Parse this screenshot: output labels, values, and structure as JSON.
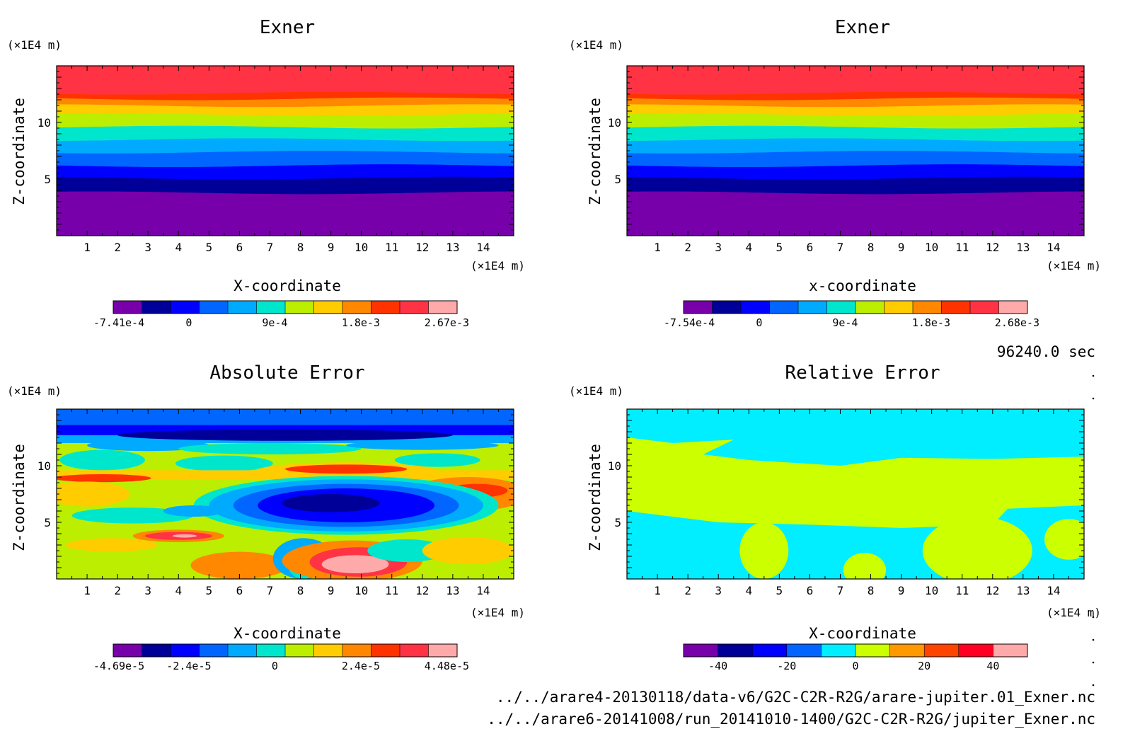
{
  "time_label": "96240.0 sec",
  "files": [
    "../../arare4-20130118/data-v6/G2C-C2R-R2G/arare-jupiter.01_Exner.nc",
    "../../arare6-20141008/run_20141010-1400/G2C-C2R-R2G/jupiter_Exner.nc"
  ],
  "colors": {
    "exner": [
      "#7700aa",
      "#000099",
      "#0000ff",
      "#0066ff",
      "#00aaff",
      "#00e6cc",
      "#bbee00",
      "#ffcc00",
      "#ff8800",
      "#ff3300",
      "#ff3344",
      "#ffaaaa"
    ],
    "abs_error": [
      "#7700aa",
      "#000099",
      "#0000ff",
      "#0066ff",
      "#00aaff",
      "#00e6cc",
      "#bbee00",
      "#ffcc00",
      "#ff8800",
      "#ff3300",
      "#ff3344",
      "#ffaaaa"
    ],
    "rel_error": [
      "#7700aa",
      "#000099",
      "#0000ff",
      "#0066ff",
      "#00eeff",
      "#ccff00",
      "#ff9900",
      "#ff4400",
      "#ff0022",
      "#ffaaaa"
    ]
  },
  "chart_data": [
    {
      "type": "heatmap",
      "title": "Exner",
      "xlabel": "X-coordinate",
      "ylabel": "Z-coordinate",
      "x_unit": "(×1E4 m)",
      "y_unit": "(×1E4 m)",
      "xlim": [
        0,
        15
      ],
      "ylim": [
        0,
        15
      ],
      "x_ticks": [
        1,
        2,
        3,
        4,
        5,
        6,
        7,
        8,
        9,
        10,
        11,
        12,
        13,
        14
      ],
      "y_ticks": [
        5,
        10
      ],
      "bands_z": [
        0,
        3.8,
        5.1,
        6.2,
        7.4,
        8.5,
        9.6,
        10.7,
        11.5,
        12.1,
        12.6,
        15
      ],
      "colorbar": {
        "labels": [
          "-7.41e-4",
          "0",
          "9e-4",
          "1.8e-3",
          "2.67e-3"
        ],
        "min": -0.000741,
        "max": 0.00267
      }
    },
    {
      "type": "heatmap",
      "title": "Exner",
      "xlabel": "x-coordinate",
      "ylabel": "Z-coordinate",
      "x_unit": "(×1E4 m)",
      "y_unit": "(×1E4 m)",
      "xlim": [
        0,
        15
      ],
      "ylim": [
        0,
        15
      ],
      "x_ticks": [
        1,
        2,
        3,
        4,
        5,
        6,
        7,
        8,
        9,
        10,
        11,
        12,
        13,
        14
      ],
      "y_ticks": [
        5,
        10
      ],
      "bands_z": [
        0,
        3.8,
        5.1,
        6.2,
        7.4,
        8.5,
        9.6,
        10.7,
        11.5,
        12.1,
        12.6,
        15
      ],
      "colorbar": {
        "labels": [
          "-7.54e-4",
          "0",
          "9e-4",
          "1.8e-3",
          "2.68e-3"
        ],
        "min": -0.000754,
        "max": 0.00268
      }
    },
    {
      "type": "heatmap",
      "title": "Absolute Error",
      "xlabel": "X-coordinate",
      "ylabel": "Z-coordinate",
      "x_unit": "(×1E4 m)",
      "y_unit": "(×1E4 m)",
      "xlim": [
        0,
        15
      ],
      "ylim": [
        0,
        15
      ],
      "x_ticks": [
        1,
        2,
        3,
        4,
        5,
        6,
        7,
        8,
        9,
        10,
        11,
        12,
        13,
        14
      ],
      "y_ticks": [
        5,
        10
      ],
      "colorbar": {
        "labels": [
          "-4.69e-5",
          "-2.4e-5",
          "0",
          "2.4e-5",
          "4.48e-5"
        ],
        "min": -4.69e-05,
        "max": 4.48e-05
      }
    },
    {
      "type": "heatmap",
      "title": "Relative Error",
      "xlabel": "X-coordinate",
      "ylabel": "Z-coordinate",
      "x_unit": "(×1E4 m)",
      "y_unit": "(×1E4 m)",
      "xlim": [
        0,
        15
      ],
      "ylim": [
        0,
        15
      ],
      "x_ticks": [
        1,
        2,
        3,
        4,
        5,
        6,
        7,
        8,
        9,
        10,
        11,
        12,
        13,
        14
      ],
      "y_ticks": [
        5,
        10
      ],
      "colorbar": {
        "labels": [
          "-40",
          "-20",
          "0",
          "20",
          "40"
        ],
        "min": -50,
        "max": 50
      }
    }
  ]
}
